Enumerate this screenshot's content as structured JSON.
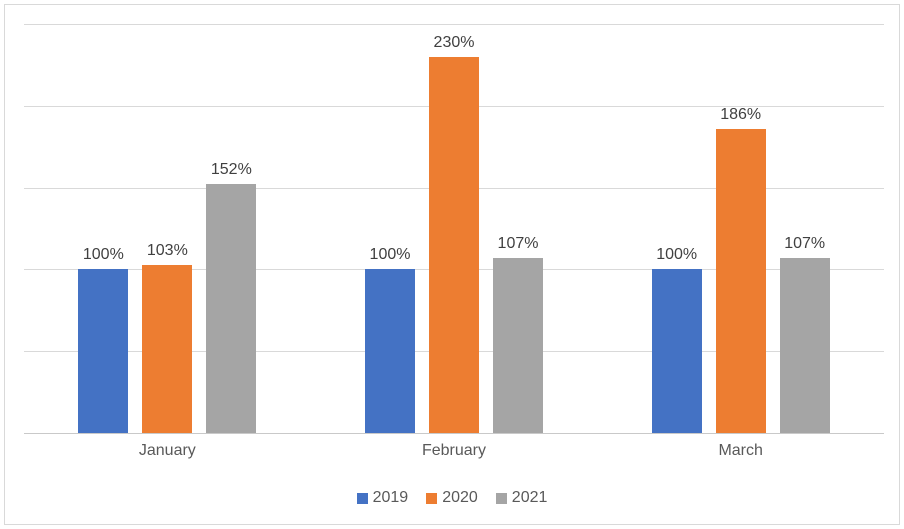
{
  "chart_data": {
    "type": "bar",
    "title": "",
    "xlabel": "",
    "ylabel": "",
    "categories": [
      "January",
      "February",
      "March"
    ],
    "series": [
      {
        "name": "2019",
        "color": "#4472C4",
        "values": [
          100,
          100,
          100
        ],
        "labels": [
          "100%",
          "100%",
          "100%"
        ]
      },
      {
        "name": "2020",
        "color": "#ED7D31",
        "values": [
          103,
          230,
          186
        ],
        "labels": [
          "103%",
          "230%",
          "186%"
        ]
      },
      {
        "name": "2021",
        "color": "#A5A5A5",
        "values": [
          152,
          107,
          107
        ],
        "labels": [
          "152%",
          "107%",
          "107%"
        ]
      }
    ],
    "ylim": [
      0,
      250
    ],
    "gridline_step": 50,
    "y_tick_labels_visible": false,
    "grid": true,
    "data_labels_visible": true,
    "legend_position": "bottom"
  },
  "colors": {
    "background": "#FFFFFF",
    "frame_border": "#D9D9D9",
    "grid": "#D9D9D9",
    "axis": "#C9C9C9",
    "data_label": "#404040",
    "axis_label": "#595959"
  }
}
